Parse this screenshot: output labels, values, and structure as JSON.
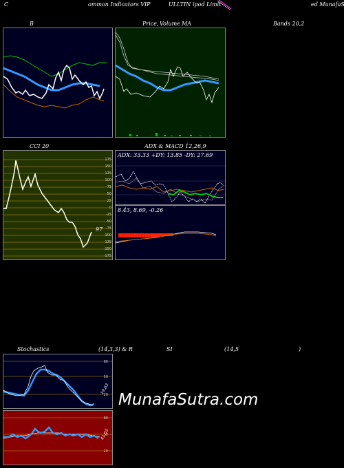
{
  "header": {
    "part1": "C",
    "part2": "ommon Indicators VIP",
    "part3": "ULLTIN",
    "part4": "ipod Limit",
    "part5": "ed MunafaSutra."
  },
  "titles": {
    "bollinger": "B",
    "price": "Price,",
    "volume": "Volume",
    "ma": "MA",
    "bands": "Bands 20,2",
    "cci": "CCI 20",
    "adx_macd": "ADX & MACD 12,26,9",
    "stochastics": "Stochastics",
    "stoch_params": "(14,3,3) & R",
    "rsi": "SI",
    "rsi_params": "(14,5",
    "rsi_close": ")"
  },
  "cci": {
    "value": "97",
    "ticks": [
      "175",
      "150",
      "125",
      "100",
      "75",
      "50",
      "25",
      "0",
      "-25",
      "-50",
      "-75",
      "-100",
      "-125",
      "-150",
      "-175"
    ]
  },
  "adx": {
    "readout": "ADX: 33.33 +DY: 13.85 -DY: 27.69"
  },
  "macd": {
    "readout": "8.43, 8.69, -0.26"
  },
  "stoch": {
    "value": "19.83",
    "ticks": [
      "80",
      "50",
      "20"
    ]
  },
  "rsi": {
    "value": "41.55",
    "ticks": [
      "80",
      "50",
      "20"
    ]
  },
  "watermark": "MunafaSutra.com",
  "colors": {
    "bollinger_bg": "#000022",
    "price_bg": "#002200",
    "cci_bg": "#223300",
    "adx_bg": "#000022",
    "stoch_bg": "#000022",
    "rsi_bg": "#880000",
    "blue_band": "#3399ff",
    "green_line": "#00cc00",
    "orange_line": "#cc6600"
  }
}
